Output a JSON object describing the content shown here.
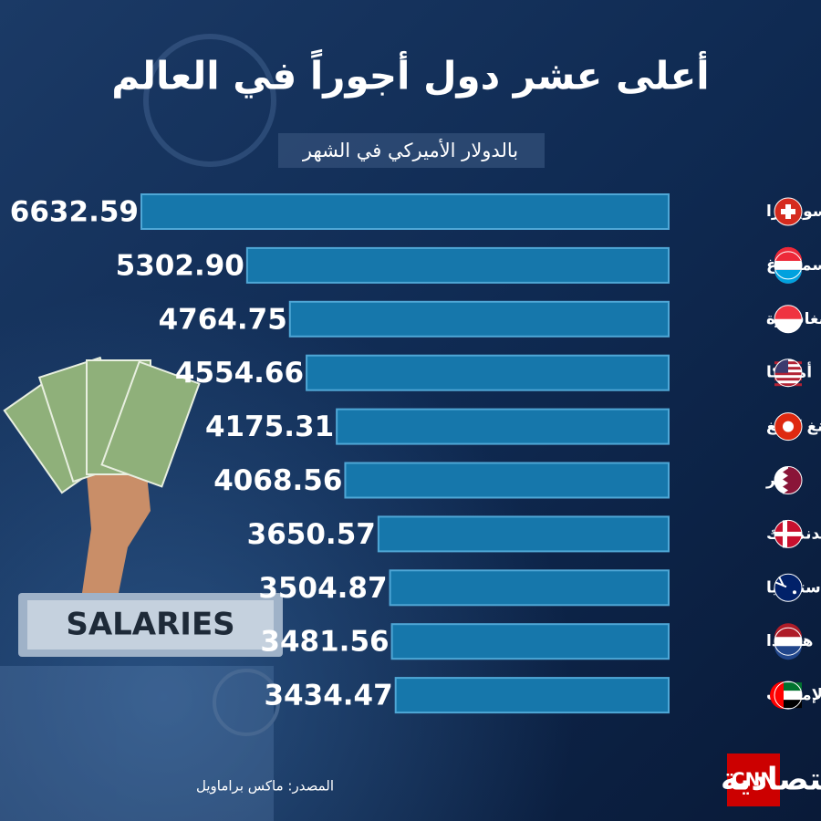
{
  "chart_data": {
    "type": "bar",
    "orientation": "horizontal",
    "title": "أعلى عشر دول أجوراً في العالم",
    "subtitle": "بالدولار الأميركي في الشهر",
    "categories": [
      "سويسرا",
      "لوكسمبورغ",
      "سنغافورة",
      "أميركا",
      "هونغ كونغ",
      "قطر",
      "الدنمارك",
      "أستراليا",
      "هولندا",
      "الإمارات"
    ],
    "values": [
      6632.59,
      5302.9,
      4764.75,
      4554.66,
      4175.31,
      4068.56,
      3650.57,
      3504.87,
      3481.56,
      3434.47
    ],
    "value_labels": [
      "6632.59",
      "5302.90",
      "4764.75",
      "4554.66",
      "4175.31",
      "4068.56",
      "3650.57",
      "3504.87",
      "3481.56",
      "3434.47"
    ],
    "color": "#1677ab"
  },
  "source": "المصدر: ماكس براماويل",
  "logo": {
    "cnn": "CNN",
    "name": "الاقتصادية"
  },
  "background_sign": "SALARIES"
}
